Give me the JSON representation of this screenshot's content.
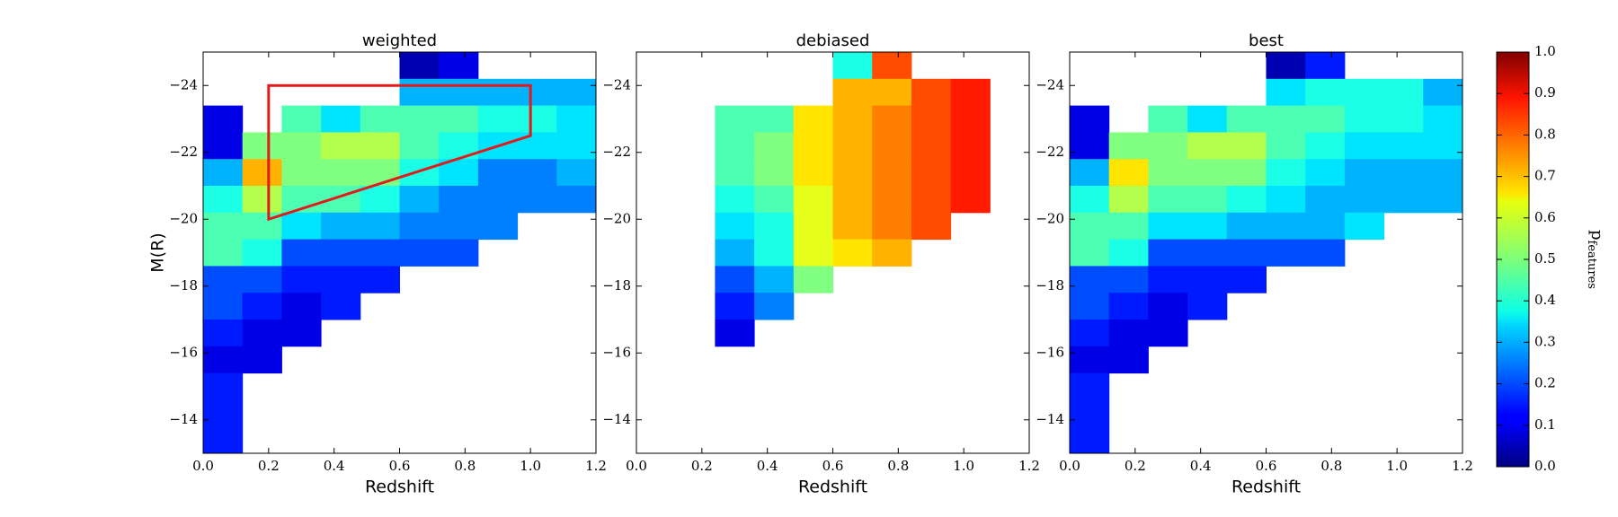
{
  "chart_data": [
    {
      "type": "heatmap",
      "title": "weighted",
      "xlabel": "Redshift",
      "ylabel": "M(R)",
      "x_edges": [
        0,
        0.12,
        0.24,
        0.36,
        0.48,
        0.6,
        0.72,
        0.84,
        0.96,
        1.08,
        1.2
      ],
      "y_edges": [
        -25,
        -24.2,
        -23.4,
        -22.6,
        -21.8,
        -21,
        -20.2,
        -19.4,
        -18.6,
        -17.8,
        -17,
        -16.2,
        -15.4,
        -14.6,
        -13.8,
        -13
      ],
      "values": [
        [
          null,
          null,
          null,
          null,
          null,
          0.05,
          0.1,
          null,
          null,
          null
        ],
        [
          null,
          null,
          null,
          null,
          null,
          0.3,
          0.3,
          0.3,
          0.3,
          0.3
        ],
        [
          0.1,
          null,
          0.45,
          0.35,
          0.45,
          0.45,
          0.45,
          0.4,
          0.4,
          0.35
        ],
        [
          0.1,
          0.5,
          0.5,
          0.55,
          0.55,
          0.45,
          0.4,
          0.35,
          0.35,
          0.35
        ],
        [
          0.3,
          0.7,
          0.5,
          0.5,
          0.5,
          0.4,
          0.35,
          0.25,
          0.25,
          0.3
        ],
        [
          0.4,
          0.55,
          0.45,
          0.45,
          0.4,
          0.3,
          0.25,
          0.25,
          0.25,
          0.25
        ],
        [
          0.45,
          0.45,
          0.35,
          0.3,
          0.3,
          0.25,
          0.25,
          0.25,
          null,
          null
        ],
        [
          0.45,
          0.4,
          0.2,
          0.2,
          0.2,
          0.2,
          0.2,
          null,
          null,
          null
        ],
        [
          0.2,
          0.2,
          0.15,
          0.15,
          0.15,
          null,
          null,
          null,
          null,
          null
        ],
        [
          0.2,
          0.15,
          0.1,
          0.15,
          null,
          null,
          null,
          null,
          null,
          null
        ],
        [
          0.15,
          0.1,
          0.1,
          null,
          null,
          null,
          null,
          null,
          null,
          null
        ],
        [
          0.1,
          0.1,
          null,
          null,
          null,
          null,
          null,
          null,
          null,
          null
        ],
        [
          0.15,
          null,
          null,
          null,
          null,
          null,
          null,
          null,
          null,
          null
        ],
        [
          0.15,
          null,
          null,
          null,
          null,
          null,
          null,
          null,
          null,
          null
        ],
        [
          0.15,
          null,
          null,
          null,
          null,
          null,
          null,
          null,
          null,
          null
        ]
      ],
      "xlim": [
        0,
        1.2
      ],
      "ylim": [
        -13,
        -25
      ],
      "xticks": [
        {
          "value": 0,
          "label": "0.0"
        },
        0.2,
        0.4,
        0.6,
        0.8,
        {
          "value": 1,
          "label": "1.0"
        },
        1.2
      ],
      "yticks": [
        {
          "value": -24,
          "label": "−24"
        },
        {
          "value": -22,
          "label": "−22"
        },
        {
          "value": -20,
          "label": "−20"
        },
        {
          "value": -18,
          "label": "−18"
        },
        {
          "value": -16,
          "label": "−16"
        },
        {
          "value": -14,
          "label": "−14"
        }
      ],
      "annotation_polygon": {
        "x": [
          0.2,
          0.2,
          1.0,
          1.0
        ],
        "y": [
          -20,
          -24,
          -24,
          -22.5
        ],
        "color": "#e31a1c"
      }
    },
    {
      "type": "heatmap",
      "title": "debiased",
      "xlabel": "Redshift",
      "x_edges": [
        0,
        0.12,
        0.24,
        0.36,
        0.48,
        0.6,
        0.72,
        0.84,
        0.96,
        1.08,
        1.2
      ],
      "y_edges": [
        -25,
        -24.2,
        -23.4,
        -22.6,
        -21.8,
        -21,
        -20.2,
        -19.4,
        -18.6,
        -17.8,
        -17,
        -16.2,
        -15.4,
        -14.6,
        -13.8,
        -13
      ],
      "values": [
        [
          null,
          null,
          null,
          null,
          null,
          0.4,
          0.8,
          null,
          null,
          null
        ],
        [
          null,
          null,
          null,
          null,
          null,
          0.7,
          0.7,
          0.8,
          0.85,
          null
        ],
        [
          null,
          null,
          0.45,
          0.45,
          0.65,
          0.7,
          0.75,
          0.8,
          0.85,
          null
        ],
        [
          null,
          null,
          0.45,
          0.5,
          0.65,
          0.7,
          0.75,
          0.8,
          0.85,
          null
        ],
        [
          null,
          null,
          0.45,
          0.5,
          0.65,
          0.7,
          0.75,
          0.8,
          0.85,
          null
        ],
        [
          null,
          null,
          0.4,
          0.45,
          0.6,
          0.7,
          0.75,
          0.8,
          0.85,
          null
        ],
        [
          null,
          null,
          0.35,
          0.4,
          0.6,
          0.7,
          0.75,
          0.8,
          null,
          null
        ],
        [
          null,
          null,
          0.3,
          0.4,
          0.6,
          0.65,
          0.7,
          null,
          null,
          null
        ],
        [
          null,
          null,
          0.2,
          0.3,
          0.5,
          null,
          null,
          null,
          null,
          null
        ],
        [
          null,
          null,
          0.15,
          0.25,
          null,
          null,
          null,
          null,
          null,
          null
        ],
        [
          null,
          null,
          0.1,
          null,
          null,
          null,
          null,
          null,
          null,
          null
        ],
        [
          null,
          null,
          null,
          null,
          null,
          null,
          null,
          null,
          null,
          null
        ],
        [
          null,
          null,
          null,
          null,
          null,
          null,
          null,
          null,
          null,
          null
        ],
        [
          null,
          null,
          null,
          null,
          null,
          null,
          null,
          null,
          null,
          null
        ],
        [
          null,
          null,
          null,
          null,
          null,
          null,
          null,
          null,
          null,
          null
        ]
      ],
      "xlim": [
        0,
        1.2
      ],
      "ylim": [
        -13,
        -25
      ],
      "xticks": [
        {
          "value": 0,
          "label": "0.0"
        },
        0.2,
        0.4,
        0.6,
        0.8,
        {
          "value": 1,
          "label": "1.0"
        },
        1.2
      ],
      "yticks": [
        {
          "value": -24,
          "label": "−24"
        },
        {
          "value": -22,
          "label": "−22"
        },
        {
          "value": -20,
          "label": "−20"
        },
        {
          "value": -18,
          "label": "−18"
        },
        {
          "value": -16,
          "label": "−16"
        },
        {
          "value": -14,
          "label": "−14"
        }
      ]
    },
    {
      "type": "heatmap",
      "title": "best",
      "xlabel": "Redshift",
      "x_edges": [
        0,
        0.12,
        0.24,
        0.36,
        0.48,
        0.6,
        0.72,
        0.84,
        0.96,
        1.08,
        1.2
      ],
      "y_edges": [
        -25,
        -24.2,
        -23.4,
        -22.6,
        -21.8,
        -21,
        -20.2,
        -19.4,
        -18.6,
        -17.8,
        -17,
        -16.2,
        -15.4,
        -14.6,
        -13.8,
        -13
      ],
      "values": [
        [
          null,
          null,
          null,
          null,
          null,
          0.05,
          0.15,
          null,
          null,
          null
        ],
        [
          null,
          null,
          null,
          null,
          null,
          0.35,
          0.4,
          0.4,
          0.4,
          0.3
        ],
        [
          0.1,
          null,
          0.45,
          0.35,
          0.45,
          0.45,
          0.45,
          0.4,
          0.4,
          0.35
        ],
        [
          0.1,
          0.5,
          0.5,
          0.55,
          0.55,
          0.45,
          0.4,
          0.35,
          0.35,
          0.35
        ],
        [
          0.3,
          0.65,
          0.5,
          0.5,
          0.5,
          0.4,
          0.35,
          0.3,
          0.3,
          0.3
        ],
        [
          0.4,
          0.55,
          0.45,
          0.45,
          0.4,
          0.35,
          0.3,
          0.3,
          0.3,
          0.3
        ],
        [
          0.45,
          0.45,
          0.35,
          0.35,
          0.3,
          0.3,
          0.3,
          0.35,
          null,
          null
        ],
        [
          0.45,
          0.4,
          0.2,
          0.2,
          0.2,
          0.2,
          0.2,
          null,
          null,
          null
        ],
        [
          0.2,
          0.2,
          0.15,
          0.15,
          0.15,
          null,
          null,
          null,
          null,
          null
        ],
        [
          0.2,
          0.15,
          0.1,
          0.15,
          null,
          null,
          null,
          null,
          null,
          null
        ],
        [
          0.15,
          0.1,
          0.1,
          null,
          null,
          null,
          null,
          null,
          null,
          null
        ],
        [
          0.1,
          0.1,
          null,
          null,
          null,
          null,
          null,
          null,
          null,
          null
        ],
        [
          0.15,
          null,
          null,
          null,
          null,
          null,
          null,
          null,
          null,
          null
        ],
        [
          0.15,
          null,
          null,
          null,
          null,
          null,
          null,
          null,
          null,
          null
        ],
        [
          0.15,
          null,
          null,
          null,
          null,
          null,
          null,
          null,
          null,
          null
        ]
      ],
      "xlim": [
        0,
        1.2
      ],
      "ylim": [
        -13,
        -25
      ],
      "xticks": [
        {
          "value": 0,
          "label": "0.0"
        },
        0.2,
        0.4,
        0.6,
        0.8,
        {
          "value": 1,
          "label": "1.0"
        },
        1.2
      ],
      "yticks": [
        {
          "value": -24,
          "label": "−24"
        },
        {
          "value": -22,
          "label": "−22"
        },
        {
          "value": -20,
          "label": "−20"
        },
        {
          "value": -18,
          "label": "−18"
        },
        {
          "value": -16,
          "label": "−16"
        },
        {
          "value": -14,
          "label": "−14"
        }
      ]
    }
  ],
  "colorbar": {
    "colormap": "jet",
    "lim": [
      0,
      1
    ],
    "label_symbol": "p",
    "label_subscript": "features",
    "ticks": [
      {
        "value": 0,
        "label": "0.0"
      },
      0.1,
      0.2,
      0.3,
      0.4,
      0.5,
      0.6,
      0.7,
      0.8,
      0.9,
      {
        "value": 1,
        "label": "1.0"
      }
    ]
  }
}
